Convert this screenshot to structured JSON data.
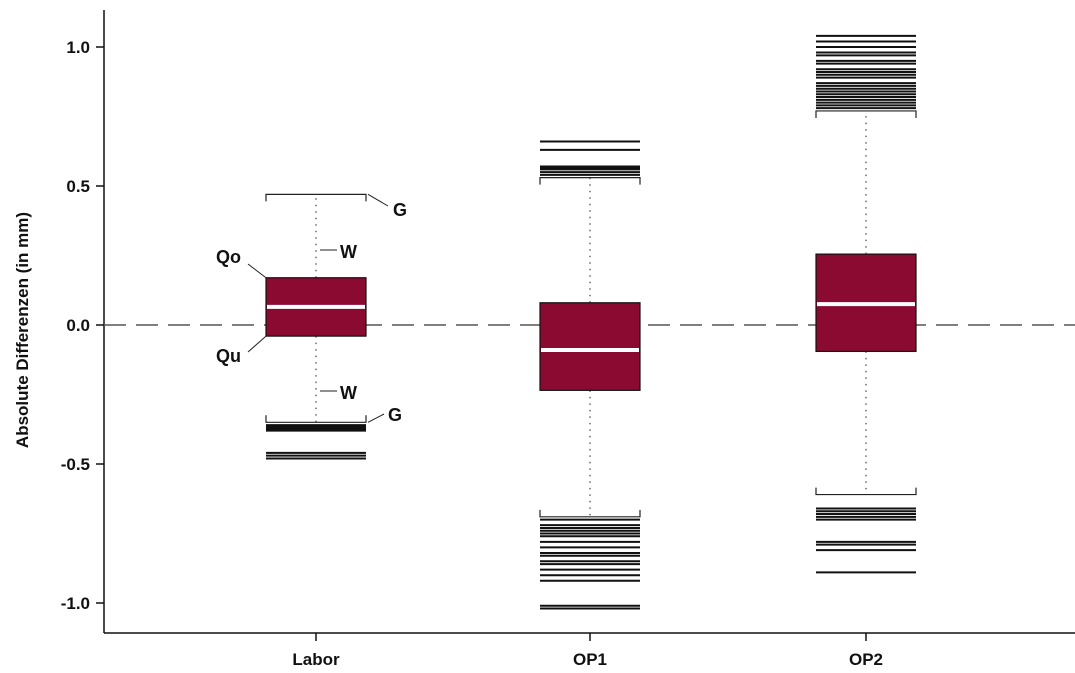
{
  "chart_data": {
    "type": "box",
    "ylabel": "Absolute Differenzen (in mm)",
    "ylim": [
      -1.1,
      1.13
    ],
    "yticks": [
      1.0,
      0.5,
      0.0,
      -0.5,
      -1.0
    ],
    "ytick_labels": [
      "1.0",
      "0.5",
      "0.0",
      "-0.5",
      "-1.0"
    ],
    "reference_line": 0.0,
    "colors": {
      "box_fill": "#8b0a32",
      "median": "#ffffff",
      "stroke": "#111111"
    },
    "categories": [
      "Labor",
      "OP1",
      "OP2"
    ],
    "boxes": [
      {
        "name": "Labor",
        "q1": -0.04,
        "median": 0.065,
        "q3": 0.17,
        "whisker_low": -0.35,
        "whisker_high": 0.47,
        "outliers": [
          -0.36,
          -0.365,
          -0.37,
          -0.375,
          -0.38,
          -0.46,
          -0.47,
          -0.48
        ]
      },
      {
        "name": "OP1",
        "q1": -0.235,
        "median": -0.09,
        "q3": 0.08,
        "whisker_low": -0.69,
        "whisker_high": 0.53,
        "outliers": [
          0.54,
          0.55,
          0.56,
          0.565,
          0.57,
          0.63,
          0.66,
          -0.7,
          -0.72,
          -0.73,
          -0.74,
          -0.75,
          -0.76,
          -0.78,
          -0.8,
          -0.82,
          -0.83,
          -0.85,
          -0.86,
          -0.88,
          -0.9,
          -0.92,
          -1.01,
          -1.02
        ]
      },
      {
        "name": "OP2",
        "q1": -0.095,
        "median": 0.075,
        "q3": 0.255,
        "whisker_low": -0.61,
        "whisker_high": 0.77,
        "outliers": [
          0.78,
          0.79,
          0.8,
          0.81,
          0.82,
          0.83,
          0.84,
          0.85,
          0.86,
          0.87,
          0.89,
          0.9,
          0.91,
          0.92,
          0.94,
          0.95,
          0.97,
          0.98,
          1.0,
          1.02,
          1.04,
          -0.66,
          -0.67,
          -0.68,
          -0.69,
          -0.7,
          -0.78,
          -0.79,
          -0.81,
          -0.89
        ]
      }
    ],
    "annotations": [
      {
        "text": "G",
        "target": "Labor.whisker_high"
      },
      {
        "text": "W",
        "target": "Labor.upper_whisker"
      },
      {
        "text": "Qo",
        "target": "Labor.q3"
      },
      {
        "text": "Qu",
        "target": "Labor.q1"
      },
      {
        "text": "W",
        "target": "Labor.lower_whisker"
      },
      {
        "text": "G",
        "target": "Labor.whisker_low"
      }
    ]
  }
}
